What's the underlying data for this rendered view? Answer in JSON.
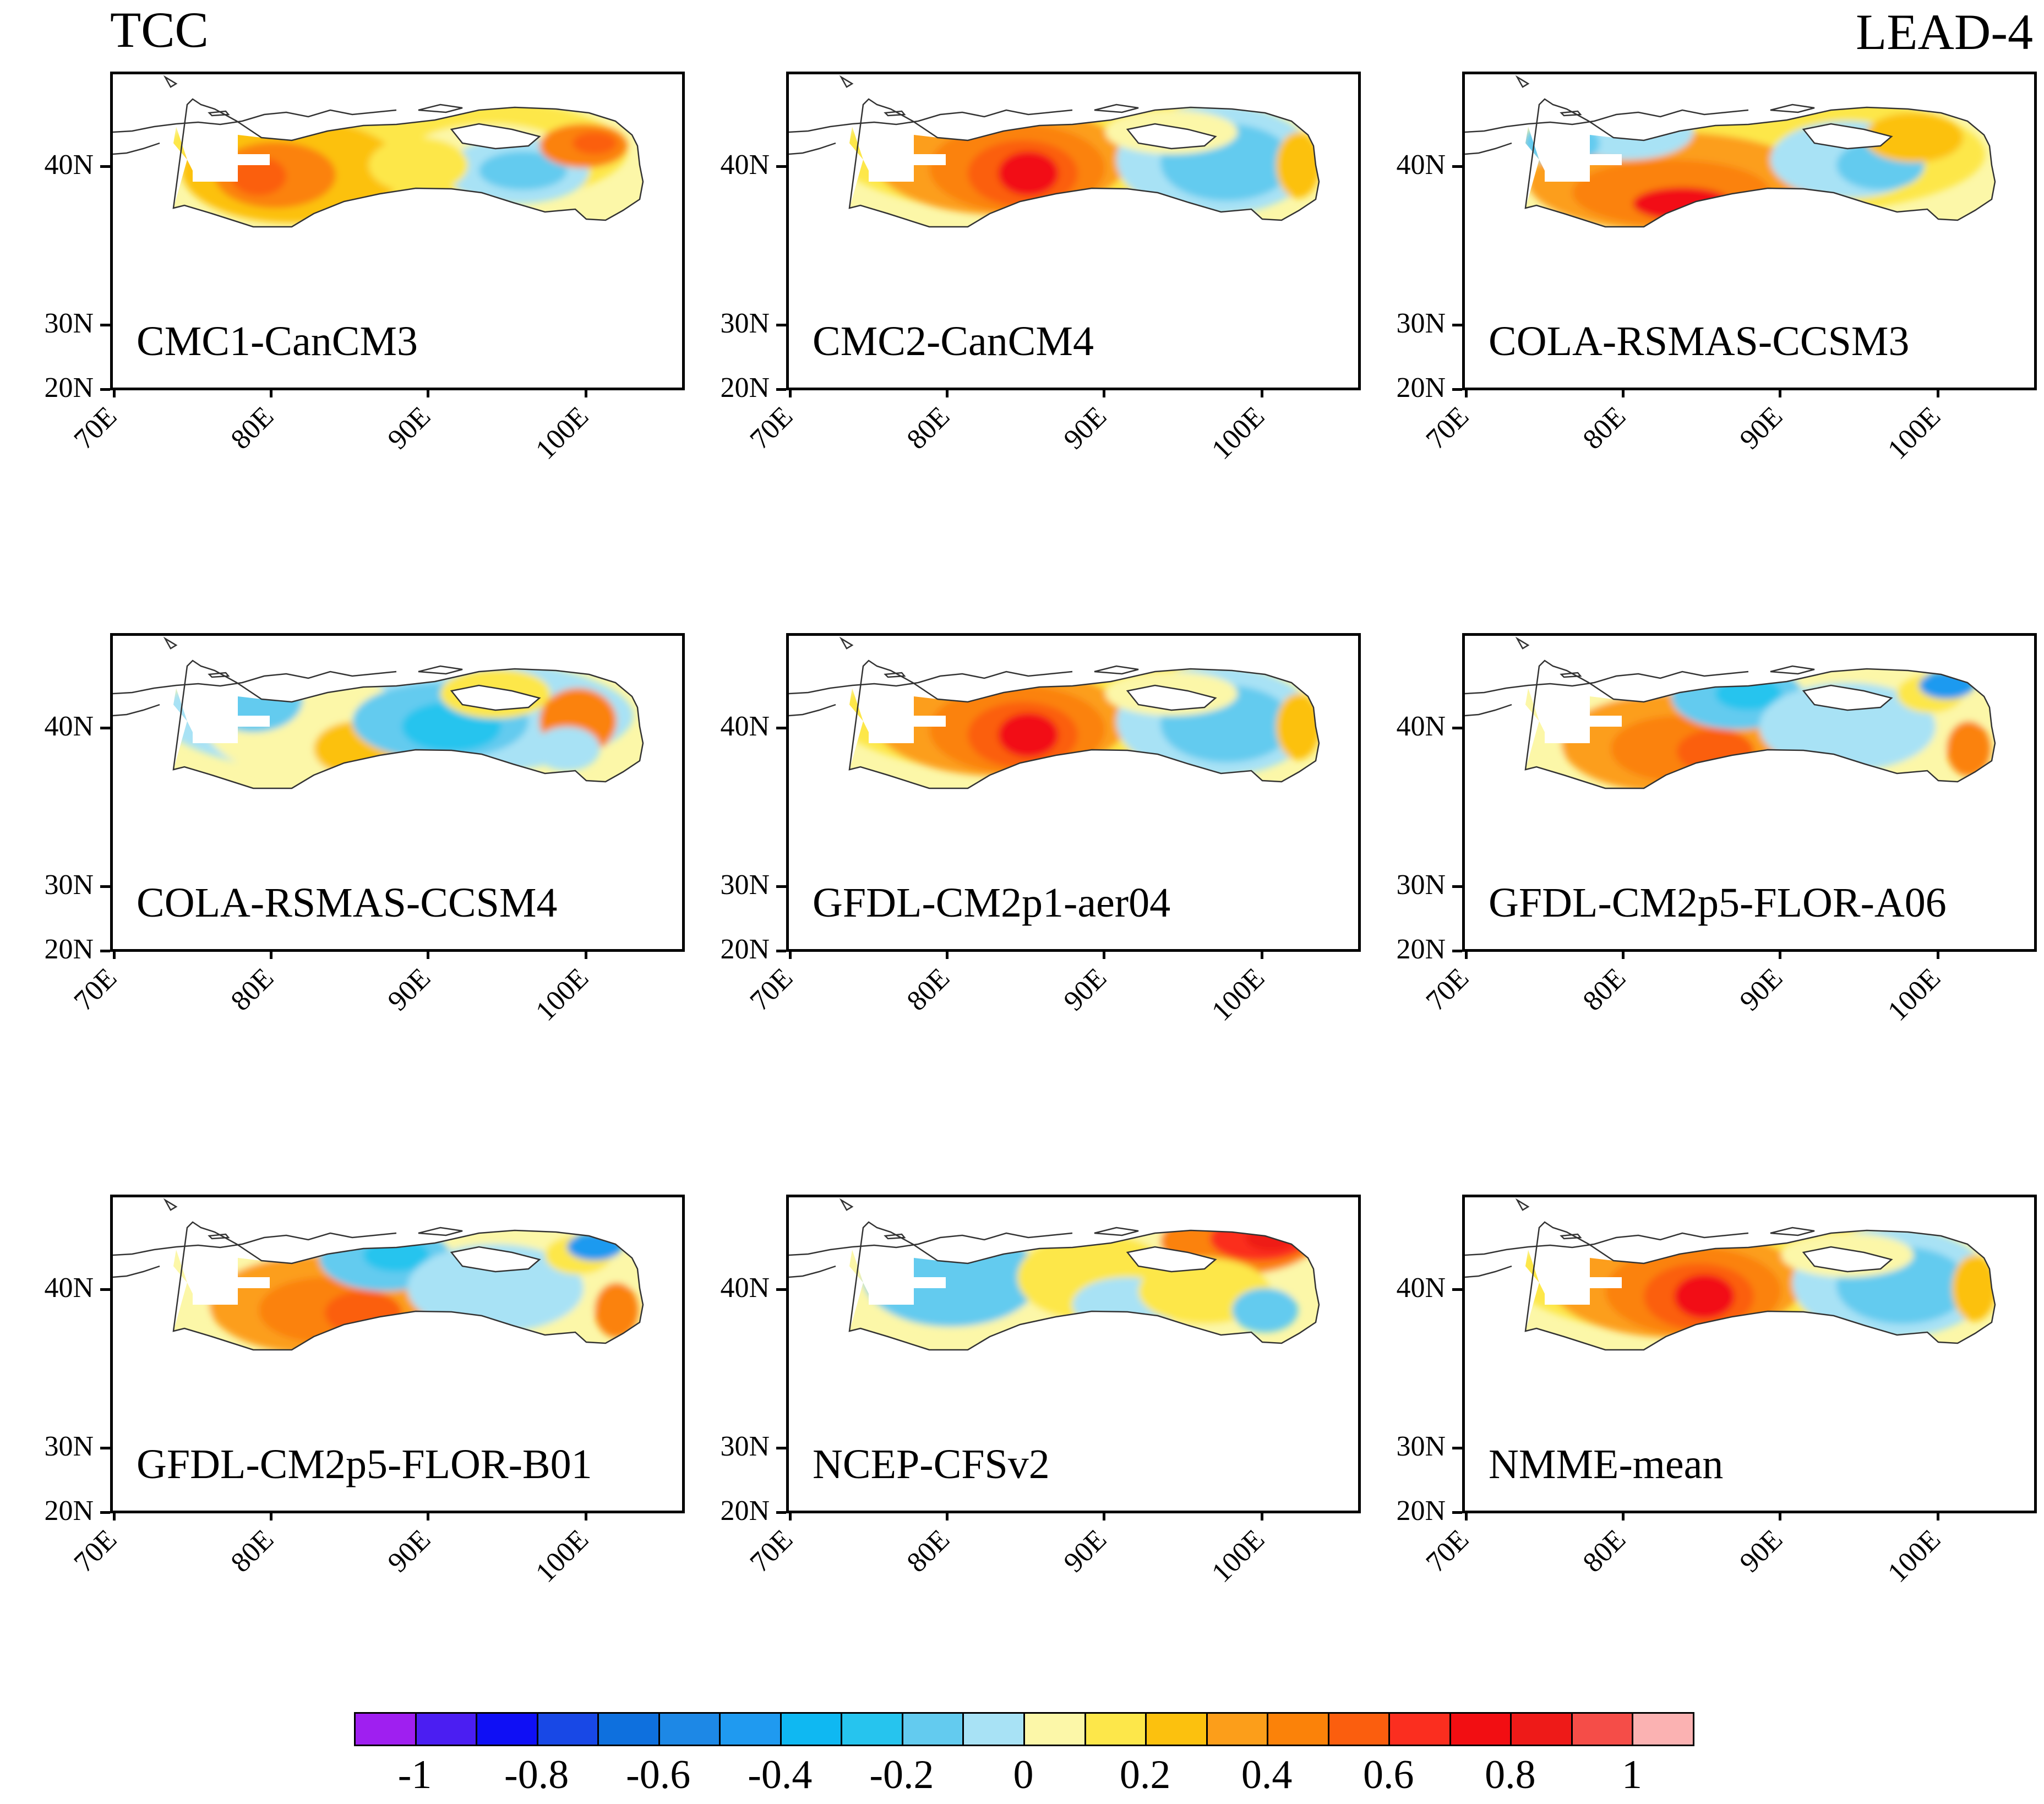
{
  "figure": {
    "title_left": "TCC",
    "title_right": "LEAD-4"
  },
  "axes": {
    "lat_labels": [
      "40N",
      "30N",
      "20N"
    ],
    "lon_labels": [
      "70E",
      "80E",
      "90E",
      "100E"
    ]
  },
  "panels": [
    {
      "label": "CMC1-CanCM3",
      "pattern": "west-warm"
    },
    {
      "label": "CMC2-CanCM4",
      "pattern": "center-hot"
    },
    {
      "label": "COLA-RSMAS-CCSM3",
      "pattern": "south-hot"
    },
    {
      "label": "COLA-RSMAS-CCSM4",
      "pattern": "mixed"
    },
    {
      "label": "GFDL-CM2p1-aer04",
      "pattern": "center-hot"
    },
    {
      "label": "GFDL-CM2p5-FLOR-A06",
      "pattern": "north-cool"
    },
    {
      "label": "GFDL-CM2p5-FLOR-B01",
      "pattern": "north-cool"
    },
    {
      "label": "NCEP-CFSv2",
      "pattern": "northeast-hot"
    },
    {
      "label": "NMME-mean",
      "pattern": "center-hot"
    }
  ],
  "colorbar": {
    "labels": [
      "-1",
      "-0.8",
      "-0.6",
      "-0.4",
      "-0.2",
      "0",
      "0.2",
      "0.4",
      "0.6",
      "0.8",
      "1"
    ],
    "colors": [
      "#9f1ff0",
      "#4b1ef2",
      "#0f0ff5",
      "#1848e6",
      "#0e70de",
      "#1d88e6",
      "#1f9af0",
      "#0fb8f2",
      "#26c4ee",
      "#63cbef",
      "#a8e2f5",
      "#fcf7a8",
      "#fde74a",
      "#fcc10e",
      "#fc9e1a",
      "#fb8209",
      "#fb5e0e",
      "#fb2e1f",
      "#f20e12",
      "#ee1a18",
      "#f54d48",
      "#fbb2b2"
    ]
  }
}
